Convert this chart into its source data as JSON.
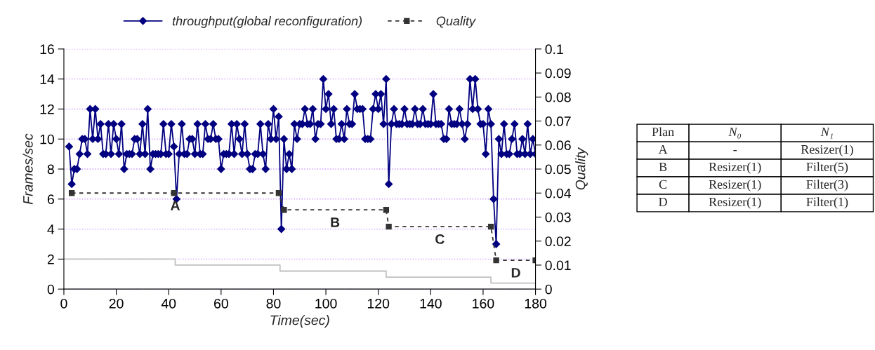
{
  "chart_data": [
    {
      "type": "line",
      "xlabel": "Time(sec)",
      "ylabel": "Frames/sec",
      "y2label": "Quality",
      "xlim": [
        0,
        180
      ],
      "xticks": [
        0,
        20,
        40,
        60,
        80,
        100,
        120,
        140,
        160,
        180
      ],
      "ylim": [
        0,
        16
      ],
      "yticks": [
        0,
        2,
        4,
        6,
        8,
        10,
        12,
        14,
        16
      ],
      "y2lim": [
        0,
        0.1
      ],
      "y2ticks": [
        0,
        0.01,
        0.02,
        0.03,
        0.04,
        0.05,
        0.06,
        0.07,
        0.08,
        0.09,
        0.1
      ],
      "grid": "y",
      "legend": "top",
      "series": [
        {
          "name": "throughput(global reconfiguration)",
          "type": "line",
          "color": "#000080",
          "marker": "diamond",
          "line_style": "solid",
          "x": [
            2,
            3,
            4,
            5,
            6,
            7,
            8,
            9,
            10,
            11,
            12,
            13,
            14,
            15,
            16,
            17,
            18,
            19,
            20,
            21,
            22,
            23,
            24,
            25,
            26,
            27,
            28,
            29,
            30,
            31,
            32,
            33,
            34,
            35,
            36,
            37,
            38,
            39,
            40,
            41,
            42,
            43,
            44,
            45,
            46,
            47,
            48,
            49,
            50,
            51,
            52,
            53,
            54,
            55,
            56,
            57,
            58,
            59,
            60,
            61,
            62,
            63,
            64,
            65,
            66,
            67,
            68,
            69,
            70,
            71,
            72,
            73,
            74,
            75,
            76,
            77,
            78,
            79,
            80,
            81,
            82,
            83,
            84,
            85,
            86,
            87,
            88,
            89,
            90,
            91,
            92,
            93,
            94,
            95,
            96,
            97,
            98,
            99,
            100,
            101,
            102,
            103,
            104,
            105,
            106,
            107,
            108,
            109,
            110,
            111,
            112,
            113,
            114,
            115,
            116,
            117,
            118,
            119,
            120,
            121,
            122,
            123,
            124,
            125,
            126,
            127,
            128,
            129,
            130,
            131,
            132,
            133,
            134,
            135,
            136,
            137,
            138,
            139,
            140,
            141,
            142,
            143,
            144,
            145,
            146,
            147,
            148,
            149,
            150,
            151,
            152,
            153,
            154,
            155,
            156,
            157,
            158,
            159,
            160,
            161,
            162,
            163,
            164,
            165,
            166,
            167,
            168,
            169,
            170,
            171,
            172,
            173,
            174,
            175,
            176,
            177,
            178,
            179,
            180
          ],
          "values": [
            9.5,
            7,
            8,
            8,
            9,
            10,
            10,
            9,
            12,
            10,
            12,
            10,
            11,
            9,
            9,
            11,
            9,
            11,
            10,
            9,
            11,
            8,
            9,
            9,
            9,
            10,
            10,
            9,
            11,
            9,
            12,
            8,
            9,
            9,
            9,
            9,
            11,
            9,
            9,
            11,
            9.5,
            6,
            9,
            11,
            9,
            9,
            10,
            10,
            9,
            11,
            9,
            9,
            11,
            10,
            10,
            11,
            10,
            10,
            8,
            9,
            9,
            9,
            11,
            9,
            11,
            10,
            9,
            11,
            9,
            8,
            8,
            9,
            9,
            11,
            9,
            8,
            11,
            10,
            12,
            10,
            11.5,
            4,
            10,
            8,
            9,
            8,
            11,
            10,
            11,
            11,
            12,
            11,
            11,
            12,
            10,
            11,
            11,
            14,
            12,
            13,
            11,
            12,
            10,
            10,
            11,
            10,
            12,
            11,
            11,
            13,
            12,
            12,
            12,
            10,
            10,
            10,
            12,
            13,
            12,
            13,
            11,
            14,
            7,
            11,
            12,
            11,
            11,
            11,
            12,
            11,
            11,
            11,
            12,
            11,
            11,
            12,
            11,
            11,
            11,
            13,
            11,
            11,
            11,
            10,
            10,
            12,
            11,
            11,
            11,
            12,
            11,
            10,
            11,
            14,
            12,
            14,
            12,
            11,
            11,
            9,
            12,
            11,
            6,
            3,
            10,
            9,
            11,
            9,
            9,
            10,
            11,
            9,
            9,
            10,
            9,
            11,
            9,
            10,
            9
          ]
        },
        {
          "name": "Quality",
          "type": "line",
          "axis": "y2",
          "color": "#333333",
          "marker": "square",
          "line_style": "dashed",
          "x": [
            3,
            42,
            82,
            84,
            123,
            124,
            163,
            165,
            180
          ],
          "values": [
            0.04,
            0.04,
            0.04,
            0.033,
            0.033,
            0.026,
            0.026,
            0.012,
            0.012
          ]
        },
        {
          "type": "step",
          "color": "#c0c0c0",
          "line_style": "solid",
          "x": [
            0,
            42.5,
            82.5,
            123,
            163,
            180
          ],
          "values": [
            2,
            1.6,
            1.2,
            0.8,
            0.4,
            0.4
          ]
        }
      ],
      "annotations": [
        "A",
        "B",
        "C",
        "D"
      ]
    },
    {
      "type": "other",
      "categories": [
        "Plan",
        "N₀",
        "N₁"
      ],
      "annotations": [
        "A",
        "-",
        "Resizer(1)",
        "B",
        "Resizer(1)",
        "Filter(5)",
        "C",
        "Resizer(1)",
        "Filter(3)",
        "D",
        "Resizer(1)",
        "Filter(1)"
      ]
    }
  ]
}
